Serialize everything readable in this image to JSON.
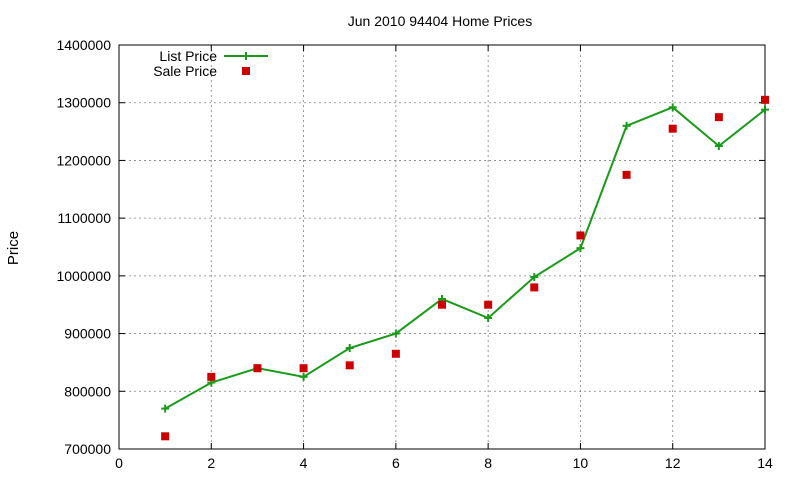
{
  "chart_data": {
    "type": "line",
    "title": "Jun 2010 94404 Home Prices",
    "xlabel": "",
    "ylabel": "Price",
    "xlim": [
      0,
      14
    ],
    "ylim": [
      700000,
      1400000
    ],
    "xticks": [
      0,
      2,
      4,
      6,
      8,
      10,
      12,
      14
    ],
    "yticks": [
      700000,
      800000,
      900000,
      1000000,
      1100000,
      1200000,
      1300000,
      1400000
    ],
    "grid": true,
    "legend_position": "top-left",
    "series": [
      {
        "name": "List Price",
        "style": "line+points",
        "marker": "plus",
        "color": "#1a9a1a",
        "x": [
          1,
          2,
          3,
          4,
          5,
          6,
          7,
          8,
          9,
          10,
          11,
          12,
          13,
          14
        ],
        "y": [
          770000,
          815000,
          840000,
          825000,
          875000,
          900000,
          960000,
          927000,
          998000,
          1048000,
          1260000,
          1292000,
          1225000,
          1288000
        ]
      },
      {
        "name": "Sale Price",
        "style": "points",
        "marker": "square",
        "color": "#cc0000",
        "x": [
          1,
          2,
          3,
          4,
          5,
          6,
          7,
          8,
          9,
          10,
          11,
          12,
          13,
          14
        ],
        "y": [
          722000,
          825000,
          840000,
          840000,
          845000,
          865000,
          950000,
          950000,
          980000,
          1070000,
          1175000,
          1255000,
          1275000,
          1305000
        ]
      }
    ]
  }
}
